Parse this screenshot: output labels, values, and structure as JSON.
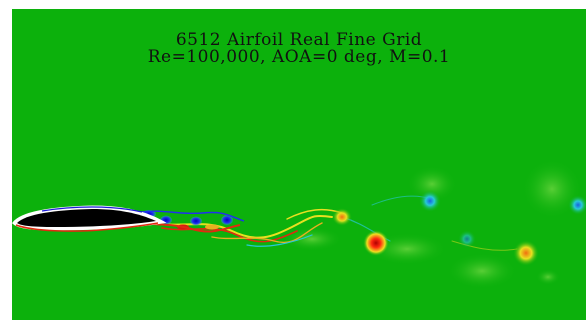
{
  "figure": {
    "title_line_1": "6512 Airfoil Real Fine Grid",
    "title_line_2": "Re=100,000, AOA=0 deg, M=0.1"
  },
  "colors": {
    "background": "#0cb10c",
    "airfoil": "#000000",
    "positive_vortex": "#e01010",
    "negative_vortex": "#1a1ad8",
    "weak_positive": "#e7e21a",
    "weak_negative": "#27c7c7"
  }
}
